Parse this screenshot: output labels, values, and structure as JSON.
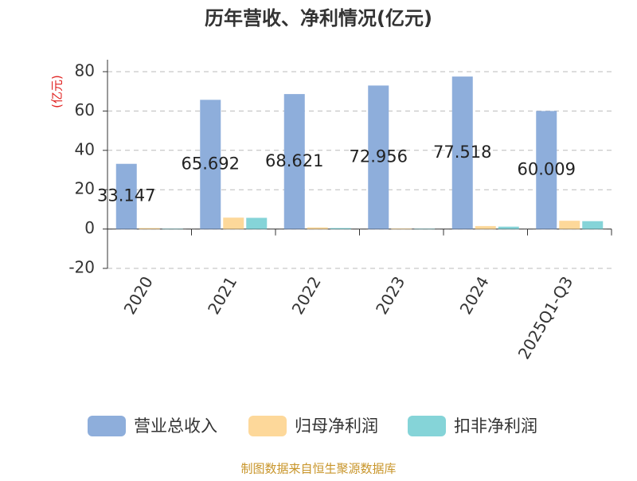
{
  "chart_data": {
    "type": "bar",
    "title": "历年营收、净利情况(亿元)",
    "y_label": "(亿元)",
    "source": "制图数据来自恒生聚源数据库",
    "categories": [
      "2020",
      "2021",
      "2022",
      "2023",
      "2024",
      "2025Q1-Q3"
    ],
    "series": [
      {
        "name": "营业总收入",
        "color": "#8eaedb",
        "values": [
          33.147,
          65.692,
          68.621,
          72.956,
          77.518,
          60.009
        ],
        "labels": true
      },
      {
        "name": "归母净利润",
        "color": "#fdd89a",
        "values": [
          0.5,
          5.8,
          0.8,
          0.3,
          1.5,
          4.2
        ]
      },
      {
        "name": "扣非净利润",
        "color": "#85d4d8",
        "values": [
          0.2,
          5.7,
          0.5,
          0.2,
          1.2,
          4.0
        ]
      }
    ],
    "ylim": [
      -20,
      80
    ],
    "yticks": [
      -20,
      0,
      20,
      40,
      60,
      80
    ],
    "grid": true
  }
}
